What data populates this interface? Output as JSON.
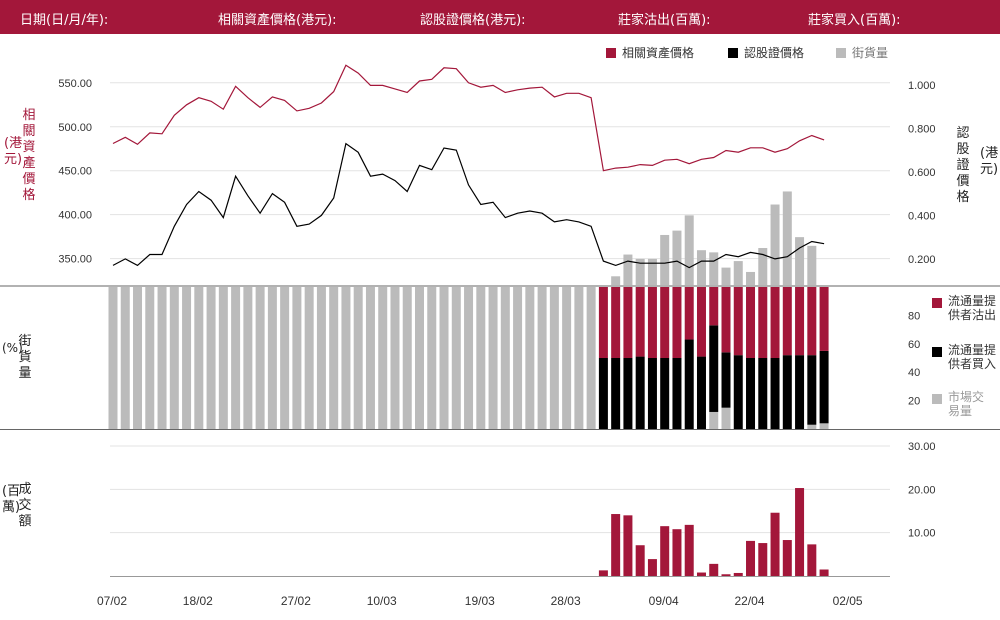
{
  "header": {
    "date_label": "日期(日/月/年):",
    "underlying_label": "相關資產價格(港元):",
    "warrant_label": "認股證價格(港元):",
    "dealer_sell_label": "莊家沽出(百萬):",
    "dealer_buy_label": "莊家買入(百萬):"
  },
  "legend": {
    "underlying": "相關資產價格",
    "warrant": "認股證價格",
    "outstanding": "街貨量"
  },
  "side_labels": {
    "lp_sell": "流通量提供者沽出",
    "lp_buy": "流通量提供者買入",
    "market": "市場交易量"
  },
  "axis_titles": {
    "left_top": "相關資產價格",
    "left_top_unit": "(港元)",
    "right_top": "認股證價格",
    "right_top_unit": "(港元)",
    "left_mid_symbol": "(%)",
    "left_mid": "街貨量",
    "left_bottom_unit": "(百萬)",
    "left_bottom": "成交額"
  },
  "colors": {
    "accent": "#a3173a",
    "warrant": "#000000",
    "outstanding": "#bbbbbb"
  },
  "chart_data": [
    {
      "type": "line",
      "x_ticks": [
        "07/02",
        "18/02",
        "27/02",
        "10/03",
        "19/03",
        "28/03",
        "09/04",
        "22/04",
        "02/05"
      ],
      "left_axis": {
        "ticks": [
          "550.00",
          "500.00",
          "450.00",
          "400.00",
          "350.00"
        ],
        "ylim": [
          320,
          560
        ]
      },
      "right_axis": {
        "ticks": [
          "1.000",
          "0.800",
          "0.600",
          "0.400",
          "0.200"
        ],
        "ylim": [
          0.08,
          1.05
        ]
      },
      "series": [
        {
          "name": "相關資產價格",
          "axis": "left",
          "values": [
            481,
            488,
            480,
            493,
            492,
            513,
            525,
            533,
            529,
            520,
            546,
            533,
            522,
            534,
            530,
            518,
            521,
            527,
            540,
            570,
            561,
            547,
            547,
            543,
            539,
            552,
            554,
            567,
            566,
            550,
            545,
            547,
            539,
            542,
            544,
            545,
            534,
            538,
            538,
            533,
            450,
            453,
            454,
            457,
            456,
            462,
            463,
            458,
            463,
            465,
            473,
            471,
            476,
            476,
            471,
            475,
            484,
            490,
            485
          ]
        },
        {
          "name": "認股證價格",
          "axis": "right",
          "values": [
            0.17,
            0.2,
            0.17,
            0.22,
            0.22,
            0.35,
            0.45,
            0.51,
            0.47,
            0.39,
            0.58,
            0.49,
            0.41,
            0.5,
            0.46,
            0.35,
            0.36,
            0.4,
            0.48,
            0.73,
            0.69,
            0.58,
            0.59,
            0.56,
            0.51,
            0.63,
            0.61,
            0.71,
            0.7,
            0.54,
            0.45,
            0.46,
            0.39,
            0.41,
            0.42,
            0.41,
            0.37,
            0.38,
            0.37,
            0.35,
            0.19,
            0.17,
            0.19,
            0.18,
            0.18,
            0.18,
            0.19,
            0.16,
            0.19,
            0.19,
            0.22,
            0.21,
            0.23,
            0.22,
            0.2,
            0.21,
            0.25,
            0.28,
            0.27
          ]
        },
        {
          "name": "街貨量",
          "axis": "right",
          "type": "bar",
          "first_index": 41,
          "values": [
            0.12,
            0.22,
            0.2,
            0.2,
            0.31,
            0.33,
            0.4,
            0.24,
            0.23,
            0.16,
            0.19,
            0.14,
            0.25,
            0.45,
            0.51,
            0.3,
            0.26
          ]
        }
      ]
    },
    {
      "type": "bar",
      "stacked": true,
      "y_ticks": [
        "80",
        "60",
        "40",
        "20"
      ],
      "ylim": [
        0,
        100
      ],
      "series": [
        {
          "name": "市場交易量",
          "values": [
            100,
            100,
            100,
            100,
            100,
            100,
            100,
            100,
            100,
            100,
            100,
            100,
            100,
            100,
            100,
            100,
            100,
            100,
            100,
            100,
            100,
            100,
            100,
            100,
            100,
            100,
            100,
            100,
            100,
            100,
            100,
            100,
            100,
            100,
            100,
            100,
            100,
            100,
            100,
            100,
            0,
            0,
            0,
            0,
            0,
            0,
            0,
            0,
            0,
            12,
            15,
            0,
            0,
            0,
            0,
            0,
            0,
            3,
            4
          ]
        },
        {
          "name": "流通量提供者買入",
          "values": [
            0,
            0,
            0,
            0,
            0,
            0,
            0,
            0,
            0,
            0,
            0,
            0,
            0,
            0,
            0,
            0,
            0,
            0,
            0,
            0,
            0,
            0,
            0,
            0,
            0,
            0,
            0,
            0,
            0,
            0,
            0,
            0,
            0,
            0,
            0,
            0,
            0,
            0,
            0,
            0,
            50,
            50,
            50,
            51,
            50,
            50,
            50,
            63,
            51,
            61,
            39,
            52,
            50,
            50,
            50,
            52,
            52,
            49,
            51
          ]
        },
        {
          "name": "流通量提供者沽出",
          "values": [
            0,
            0,
            0,
            0,
            0,
            0,
            0,
            0,
            0,
            0,
            0,
            0,
            0,
            0,
            0,
            0,
            0,
            0,
            0,
            0,
            0,
            0,
            0,
            0,
            0,
            0,
            0,
            0,
            0,
            0,
            0,
            0,
            0,
            0,
            0,
            0,
            0,
            0,
            0,
            0,
            50,
            50,
            50,
            49,
            50,
            50,
            50,
            37,
            49,
            27,
            46,
            48,
            50,
            50,
            50,
            48,
            48,
            48,
            45
          ]
        }
      ]
    },
    {
      "type": "bar",
      "y_ticks": [
        "30.00",
        "20.00",
        "10.00"
      ],
      "ylim": [
        0,
        30
      ],
      "series": [
        {
          "name": "成交額",
          "first_index": 40,
          "values": [
            1.3,
            14.3,
            14.0,
            7.1,
            3.9,
            11.5,
            10.8,
            11.8,
            0.8,
            2.8,
            0.4,
            0.7,
            8.1,
            7.6,
            14.6,
            8.3,
            20.3,
            7.3,
            1.5
          ]
        }
      ]
    }
  ]
}
